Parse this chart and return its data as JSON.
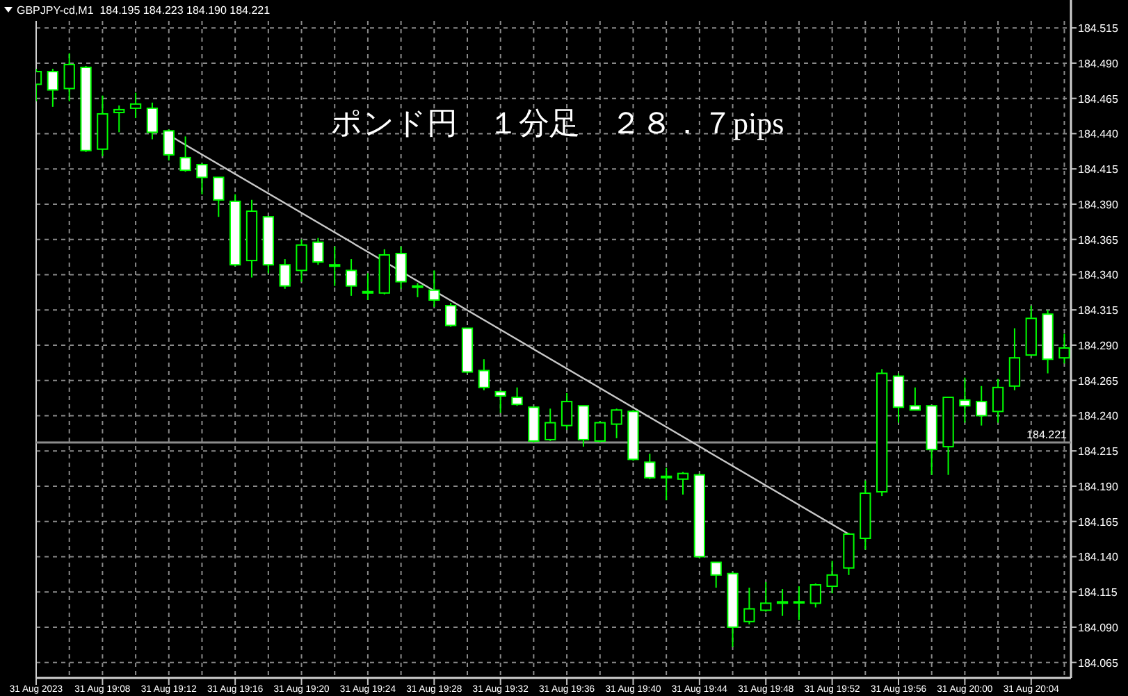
{
  "chart_data": {
    "type": "candlestick",
    "title": "ポンド円　１分足　２８．７pips",
    "subtitle": "GBPJPY-cd,M1  184.195 184.223 184.190 184.221",
    "color": "#00ff00",
    "grid": true,
    "x": [
      "2023-08-31T19:04",
      "2023-08-31T19:05",
      "2023-08-31T19:06",
      "2023-08-31T19:07",
      "2023-08-31T19:08",
      "2023-08-31T19:09",
      "2023-08-31T19:10",
      "2023-08-31T19:11",
      "2023-08-31T19:12",
      "2023-08-31T19:13",
      "2023-08-31T19:14",
      "2023-08-31T19:15",
      "2023-08-31T19:16",
      "2023-08-31T19:17",
      "2023-08-31T19:18",
      "2023-08-31T19:19",
      "2023-08-31T19:20",
      "2023-08-31T19:21",
      "2023-08-31T19:22",
      "2023-08-31T19:23",
      "2023-08-31T19:24",
      "2023-08-31T19:25",
      "2023-08-31T19:26",
      "2023-08-31T19:27",
      "2023-08-31T19:28",
      "2023-08-31T19:29",
      "2023-08-31T19:30",
      "2023-08-31T19:31",
      "2023-08-31T19:32",
      "2023-08-31T19:33",
      "2023-08-31T19:34",
      "2023-08-31T19:35",
      "2023-08-31T19:36",
      "2023-08-31T19:37",
      "2023-08-31T19:38",
      "2023-08-31T19:39",
      "2023-08-31T19:40",
      "2023-08-31T19:41",
      "2023-08-31T19:42",
      "2023-08-31T19:43",
      "2023-08-31T19:44",
      "2023-08-31T19:45",
      "2023-08-31T19:46",
      "2023-08-31T19:47",
      "2023-08-31T19:48",
      "2023-08-31T19:49",
      "2023-08-31T19:50",
      "2023-08-31T19:51",
      "2023-08-31T19:52",
      "2023-08-31T19:53",
      "2023-08-31T19:54",
      "2023-08-31T19:55",
      "2023-08-31T19:56",
      "2023-08-31T19:57",
      "2023-08-31T19:58",
      "2023-08-31T19:59",
      "2023-08-31T20:00",
      "2023-08-31T20:01",
      "2023-08-31T20:02",
      "2023-08-31T20:03",
      "2023-08-31T20:04",
      "2023-08-31T20:05",
      "2023-08-31T20:06"
    ],
    "ohlc": [
      [
        184.475,
        184.486,
        184.463,
        184.484
      ],
      [
        184.484,
        184.486,
        184.459,
        184.471
      ],
      [
        184.472,
        184.497,
        184.463,
        184.489
      ],
      [
        184.487,
        184.488,
        184.427,
        184.428
      ],
      [
        184.429,
        184.467,
        184.424,
        184.454
      ],
      [
        184.455,
        184.46,
        184.441,
        184.457
      ],
      [
        184.458,
        184.469,
        184.451,
        184.461
      ],
      [
        184.458,
        184.462,
        184.436,
        184.441
      ],
      [
        184.442,
        184.443,
        184.421,
        184.425
      ],
      [
        184.423,
        184.438,
        184.413,
        184.414
      ],
      [
        184.418,
        184.419,
        184.397,
        184.409
      ],
      [
        184.409,
        184.409,
        184.381,
        184.393
      ],
      [
        184.392,
        184.397,
        184.346,
        184.347
      ],
      [
        184.35,
        184.393,
        184.338,
        184.385
      ],
      [
        184.381,
        184.381,
        184.341,
        184.347
      ],
      [
        184.347,
        184.351,
        184.33,
        184.332
      ],
      [
        184.343,
        184.365,
        184.335,
        184.361
      ],
      [
        184.363,
        184.366,
        184.347,
        184.349
      ],
      [
        184.347,
        184.36,
        184.332,
        184.346
      ],
      [
        184.343,
        184.351,
        184.325,
        184.332
      ],
      [
        184.328,
        184.341,
        184.322,
        184.327
      ],
      [
        184.327,
        184.358,
        184.326,
        184.354
      ],
      [
        184.355,
        184.36,
        184.33,
        184.335
      ],
      [
        184.332,
        184.334,
        184.324,
        184.331
      ],
      [
        184.329,
        184.343,
        184.317,
        184.322
      ],
      [
        184.318,
        184.32,
        184.303,
        184.304
      ],
      [
        184.302,
        184.302,
        184.27,
        184.271
      ],
      [
        184.272,
        184.28,
        184.258,
        184.26
      ],
      [
        184.257,
        184.258,
        184.242,
        184.254
      ],
      [
        184.253,
        184.26,
        184.247,
        184.248
      ],
      [
        184.246,
        184.246,
        184.221,
        184.222
      ],
      [
        184.223,
        184.245,
        184.222,
        184.235
      ],
      [
        184.233,
        184.256,
        184.23,
        184.25
      ],
      [
        184.247,
        184.247,
        184.218,
        184.223
      ],
      [
        184.222,
        184.236,
        184.221,
        184.235
      ],
      [
        184.234,
        184.245,
        184.224,
        184.244
      ],
      [
        184.243,
        184.244,
        184.208,
        184.209
      ],
      [
        184.207,
        184.213,
        184.195,
        184.196
      ],
      [
        184.197,
        184.203,
        184.18,
        184.196
      ],
      [
        184.195,
        184.2,
        184.184,
        184.199
      ],
      [
        184.198,
        184.199,
        184.139,
        184.14
      ],
      [
        184.136,
        184.136,
        184.118,
        184.127
      ],
      [
        184.128,
        184.129,
        184.076,
        184.09
      ],
      [
        184.094,
        184.118,
        184.092,
        184.103
      ],
      [
        184.102,
        184.122,
        184.101,
        184.107
      ],
      [
        184.107,
        184.117,
        184.098,
        184.108
      ],
      [
        184.108,
        184.119,
        184.095,
        184.108
      ],
      [
        184.107,
        184.121,
        184.104,
        184.12
      ],
      [
        184.119,
        184.137,
        184.114,
        184.127
      ],
      [
        184.132,
        184.157,
        184.127,
        184.156
      ],
      [
        184.153,
        184.194,
        184.145,
        184.185
      ],
      [
        184.186,
        184.273,
        184.183,
        184.27
      ],
      [
        184.268,
        184.27,
        184.235,
        184.246
      ],
      [
        184.247,
        184.26,
        184.244,
        184.244
      ],
      [
        184.247,
        184.247,
        184.198,
        184.216
      ],
      [
        184.218,
        184.253,
        184.198,
        184.253
      ],
      [
        184.251,
        184.267,
        184.235,
        184.247
      ],
      [
        184.25,
        184.261,
        184.233,
        184.24
      ],
      [
        184.243,
        184.266,
        184.235,
        184.26
      ],
      [
        184.261,
        184.302,
        184.258,
        184.281
      ],
      [
        184.283,
        184.318,
        184.283,
        184.309
      ],
      [
        184.312,
        184.315,
        184.27,
        184.28
      ],
      [
        184.281,
        184.298,
        184.277,
        184.288
      ]
    ],
    "series": [
      {
        "type": "line",
        "color": "#c8c8c8",
        "x": [
          "2023-08-31T19:12",
          "2023-08-31T19:53"
        ],
        "values": [
          184.439,
          184.156
        ]
      }
    ],
    "ref_lines": [
      {
        "axis": "y",
        "value": 184.221,
        "label": "184.221",
        "color": "#8c8c8c"
      }
    ],
    "xlim": [
      "2023-08-31T19:04",
      "2023-08-31T20:06:24"
    ],
    "xticks": [
      {
        "value": "2023-08-31T19:04",
        "label": "31 Aug 2023"
      },
      {
        "value": "2023-08-31T19:06",
        "label": null
      },
      {
        "value": "2023-08-31T19:08",
        "label": "31 Aug 19:08"
      },
      {
        "value": "2023-08-31T19:10",
        "label": null
      },
      {
        "value": "2023-08-31T19:12",
        "label": "31 Aug 19:12"
      },
      {
        "value": "2023-08-31T19:14",
        "label": null
      },
      {
        "value": "2023-08-31T19:16",
        "label": "31 Aug 19:16"
      },
      {
        "value": "2023-08-31T19:18",
        "label": null
      },
      {
        "value": "2023-08-31T19:20",
        "label": "31 Aug 19:20"
      },
      {
        "value": "2023-08-31T19:22",
        "label": null
      },
      {
        "value": "2023-08-31T19:24",
        "label": "31 Aug 19:24"
      },
      {
        "value": "2023-08-31T19:26",
        "label": null
      },
      {
        "value": "2023-08-31T19:28",
        "label": "31 Aug 19:28"
      },
      {
        "value": "2023-08-31T19:30",
        "label": null
      },
      {
        "value": "2023-08-31T19:32",
        "label": "31 Aug 19:32"
      },
      {
        "value": "2023-08-31T19:34",
        "label": null
      },
      {
        "value": "2023-08-31T19:36",
        "label": "31 Aug 19:36"
      },
      {
        "value": "2023-08-31T19:38",
        "label": null
      },
      {
        "value": "2023-08-31T19:40",
        "label": "31 Aug 19:40"
      },
      {
        "value": "2023-08-31T19:42",
        "label": null
      },
      {
        "value": "2023-08-31T19:44",
        "label": "31 Aug 19:44"
      },
      {
        "value": "2023-08-31T19:46",
        "label": null
      },
      {
        "value": "2023-08-31T19:48",
        "label": "31 Aug 19:48"
      },
      {
        "value": "2023-08-31T19:50",
        "label": null
      },
      {
        "value": "2023-08-31T19:52",
        "label": "31 Aug 19:52"
      },
      {
        "value": "2023-08-31T19:54",
        "label": null
      },
      {
        "value": "2023-08-31T19:56",
        "label": "31 Aug 19:56"
      },
      {
        "value": "2023-08-31T19:58",
        "label": null
      },
      {
        "value": "2023-08-31T20:00",
        "label": "31 Aug 20:00"
      },
      {
        "value": "2023-08-31T20:02",
        "label": null
      },
      {
        "value": "2023-08-31T20:04",
        "label": "31 Aug 20:04"
      },
      {
        "value": "2023-08-31T20:06",
        "label": null
      }
    ],
    "ylim": [
      184.054,
      184.52
    ],
    "yticks": [
      {
        "value": 184.065,
        "label": "184.065"
      },
      {
        "value": 184.09,
        "label": "184.090"
      },
      {
        "value": 184.115,
        "label": "184.115"
      },
      {
        "value": 184.14,
        "label": "184.140"
      },
      {
        "value": 184.165,
        "label": "184.165"
      },
      {
        "value": 184.19,
        "label": "184.190"
      },
      {
        "value": 184.215,
        "label": "184.215"
      },
      {
        "value": 184.24,
        "label": "184.240"
      },
      {
        "value": 184.265,
        "label": "184.265"
      },
      {
        "value": 184.29,
        "label": "184.290"
      },
      {
        "value": 184.315,
        "label": "184.315"
      },
      {
        "value": 184.34,
        "label": "184.340"
      },
      {
        "value": 184.365,
        "label": "184.365"
      },
      {
        "value": 184.39,
        "label": "184.390"
      },
      {
        "value": 184.415,
        "label": "184.415"
      },
      {
        "value": 184.44,
        "label": "184.440"
      },
      {
        "value": 184.465,
        "label": "184.465"
      },
      {
        "value": 184.49,
        "label": "184.490"
      },
      {
        "value": 184.515,
        "label": "184.515"
      }
    ]
  }
}
